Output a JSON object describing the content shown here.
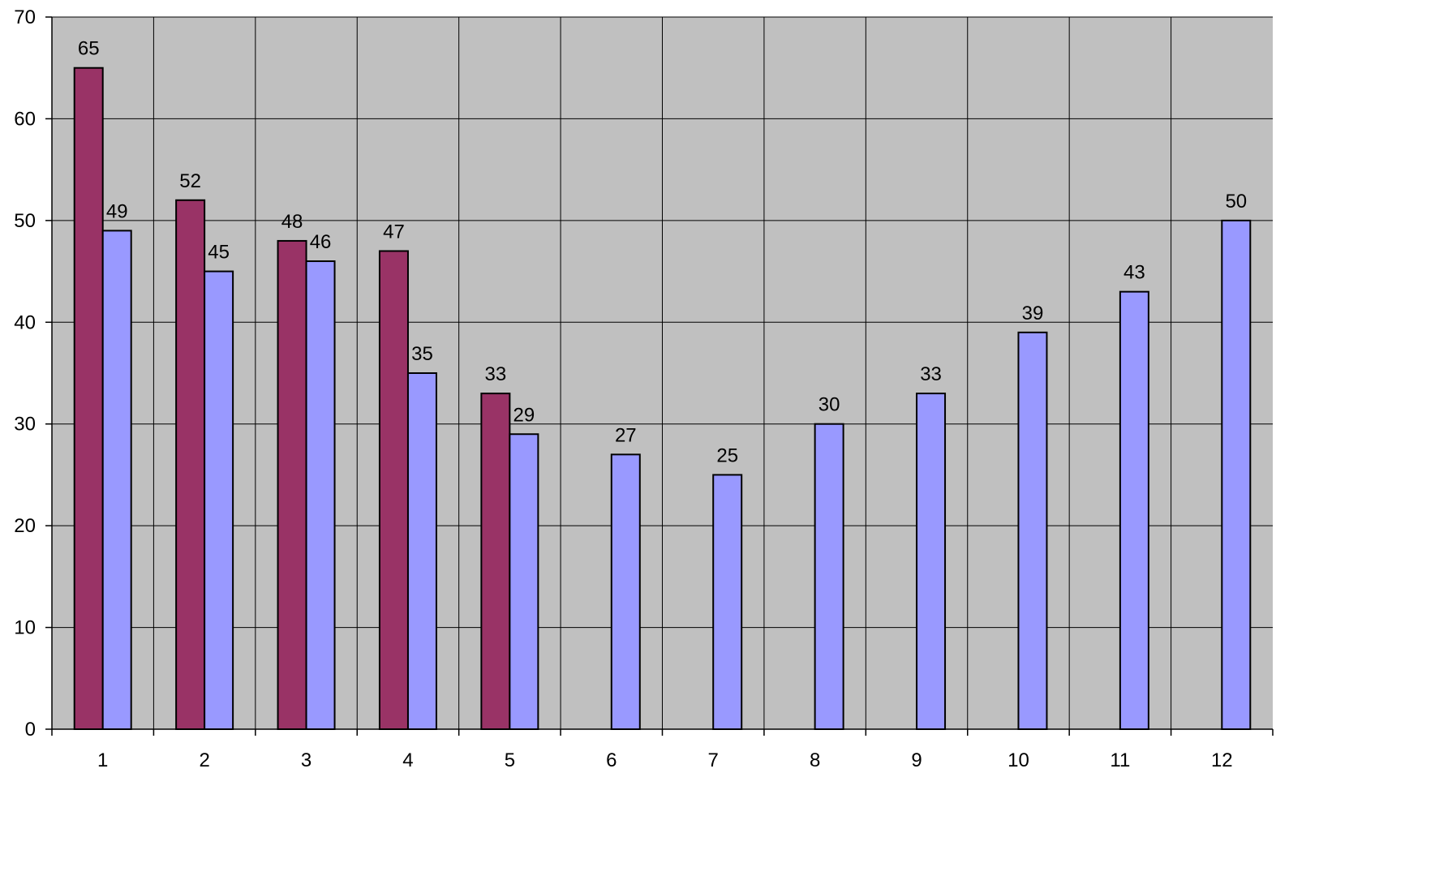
{
  "chart_data": {
    "type": "bar",
    "categories": [
      "1",
      "2",
      "3",
      "4",
      "5",
      "6",
      "7",
      "8",
      "9",
      "10",
      "11",
      "12"
    ],
    "series": [
      {
        "values": [
          65,
          52,
          48,
          47,
          33,
          null,
          null,
          null,
          null,
          null,
          null,
          null
        ]
      },
      {
        "values": [
          49,
          45,
          46,
          35,
          29,
          27,
          25,
          30,
          33,
          39,
          43,
          50
        ]
      }
    ],
    "yticks": [
      "0",
      "10",
      "20",
      "30",
      "40",
      "50",
      "60",
      "70"
    ],
    "ylim": [
      0,
      70
    ],
    "grid": true,
    "data_labels": true,
    "colors": {
      "series_1": "#993366",
      "series_2": "#9999ff",
      "plot_background": "#c0c0c0",
      "grid": "#000000"
    }
  }
}
